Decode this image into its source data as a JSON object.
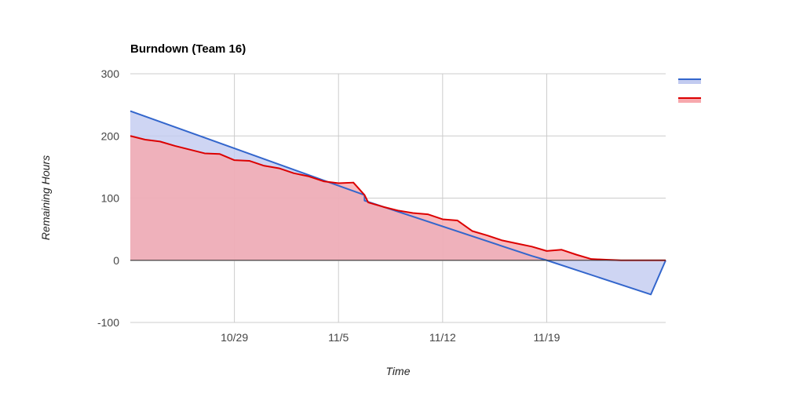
{
  "chart_data": {
    "type": "area",
    "title": "Burndown (Team 16)",
    "xlabel": "Time",
    "ylabel": "Remaining Hours",
    "xlim": [
      "2012-10-22",
      "2012-11-27"
    ],
    "ylim": [
      -100,
      300
    ],
    "x_ticks": [
      {
        "date": "2012-10-29",
        "label": "10/29"
      },
      {
        "date": "2012-11-05",
        "label": "11/5"
      },
      {
        "date": "2012-11-12",
        "label": "11/12"
      },
      {
        "date": "2012-11-19",
        "label": "11/19"
      }
    ],
    "y_ticks": [
      300,
      200,
      100,
      0,
      -100
    ],
    "grid": true,
    "legend": "right",
    "series": [
      {
        "color": "#3366cc",
        "fill": "#c2cbf0",
        "points": [
          [
            "2012-10-22",
            240
          ],
          [
            "2012-11-06 18:00",
            105
          ],
          [
            "2012-11-06 18:00",
            96
          ],
          [
            "2012-11-18",
            7
          ],
          [
            "2012-11-19",
            0
          ],
          [
            "2012-11-26",
            -55
          ],
          [
            "2012-11-27",
            0
          ]
        ]
      },
      {
        "color": "#dc0000",
        "fill": "#f7a8ad",
        "points": [
          [
            "2012-10-22",
            200
          ],
          [
            "2012-10-23",
            194
          ],
          [
            "2012-10-24",
            191
          ],
          [
            "2012-10-25",
            184
          ],
          [
            "2012-10-26",
            178
          ],
          [
            "2012-10-27",
            172
          ],
          [
            "2012-10-28",
            171
          ],
          [
            "2012-10-29",
            161
          ],
          [
            "2012-10-30",
            160
          ],
          [
            "2012-10-31",
            152
          ],
          [
            "2012-11-01",
            148
          ],
          [
            "2012-11-02",
            140
          ],
          [
            "2012-11-03",
            135
          ],
          [
            "2012-11-04",
            127
          ],
          [
            "2012-11-05",
            124
          ],
          [
            "2012-11-06",
            125
          ],
          [
            "2012-11-06 18:00",
            105
          ],
          [
            "2012-11-07",
            93
          ],
          [
            "2012-11-08",
            86
          ],
          [
            "2012-11-09",
            80
          ],
          [
            "2012-11-10",
            76
          ],
          [
            "2012-11-11",
            74
          ],
          [
            "2012-11-12",
            66
          ],
          [
            "2012-11-13",
            64
          ],
          [
            "2012-11-14",
            47
          ],
          [
            "2012-11-15",
            40
          ],
          [
            "2012-11-16",
            32
          ],
          [
            "2012-11-17",
            27
          ],
          [
            "2012-11-18",
            22
          ],
          [
            "2012-11-19",
            15
          ],
          [
            "2012-11-20",
            17
          ],
          [
            "2012-11-21",
            9
          ],
          [
            "2012-11-22",
            2
          ],
          [
            "2012-11-23",
            1
          ],
          [
            "2012-11-24",
            0
          ],
          [
            "2012-11-27",
            0
          ]
        ]
      }
    ]
  }
}
